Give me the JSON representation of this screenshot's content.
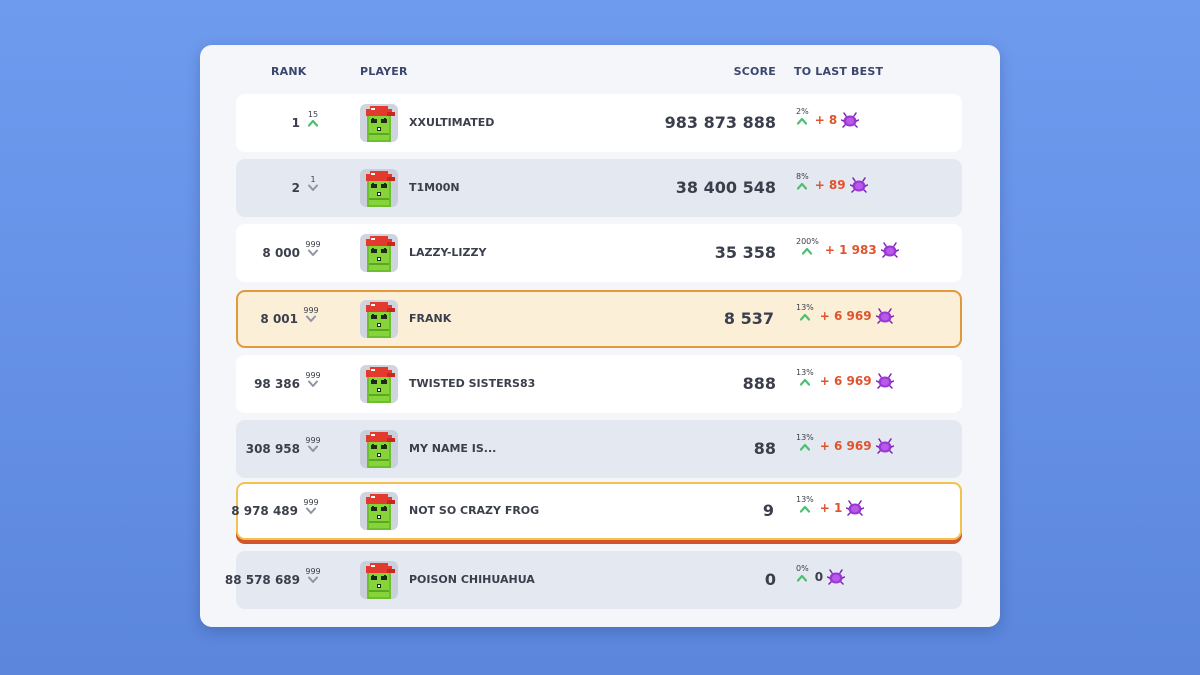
{
  "header": {
    "rank": "RANK",
    "player": "PLAYER",
    "score": "SCORE",
    "to_last_best": "TO LAST BEST"
  },
  "colors": {
    "background": "#6a95ea",
    "panel": "#f4f6fa",
    "up_arrow": "#4cc070",
    "down_arrow": "#8e95a6",
    "delta": "#e0532c",
    "highlight_border": "#e09a3a",
    "current_border": "#f1c24d",
    "current_shadow": "#d6542c",
    "bug": "#9b37d6"
  },
  "rows": [
    {
      "rank": "1",
      "rank_delta": "15",
      "direction": "up",
      "name": "XXULTIMATED",
      "score": "983 873 888",
      "pct": "2%",
      "delta": "+ 8",
      "style": "white"
    },
    {
      "rank": "2",
      "rank_delta": "1",
      "direction": "down",
      "name": "T1M00N",
      "score": "38 400 548",
      "pct": "8%",
      "delta": "+ 89",
      "style": "grey"
    },
    {
      "rank": "8 000",
      "rank_delta": "999",
      "direction": "down",
      "name": "LAZZY-LIZZY",
      "score": "35 358",
      "pct": "200%",
      "delta": "+ 1 983",
      "style": "white"
    },
    {
      "rank": "8 001",
      "rank_delta": "999",
      "direction": "down",
      "name": "FRANK",
      "score": "8 537",
      "pct": "13%",
      "delta": "+ 6 969",
      "style": "highlight"
    },
    {
      "rank": "98 386",
      "rank_delta": "999",
      "direction": "down",
      "name": "TWISTED SISTERS83",
      "score": "888",
      "pct": "13%",
      "delta": "+ 6 969",
      "style": "white"
    },
    {
      "rank": "308 958",
      "rank_delta": "999",
      "direction": "down",
      "name": "MY NAME IS...",
      "score": "88",
      "pct": "13%",
      "delta": "+ 6 969",
      "style": "grey"
    },
    {
      "rank": "8 978 489",
      "rank_delta": "999",
      "direction": "down",
      "name": "NOT SO CRAZY FROG",
      "score": "9",
      "pct": "13%",
      "delta": "+ 1",
      "style": "current"
    },
    {
      "rank": "88 578 689",
      "rank_delta": "999",
      "direction": "down",
      "name": "POISON CHIHUAHUA",
      "score": "0",
      "pct": "0%",
      "delta": "0",
      "style": "grey"
    }
  ]
}
